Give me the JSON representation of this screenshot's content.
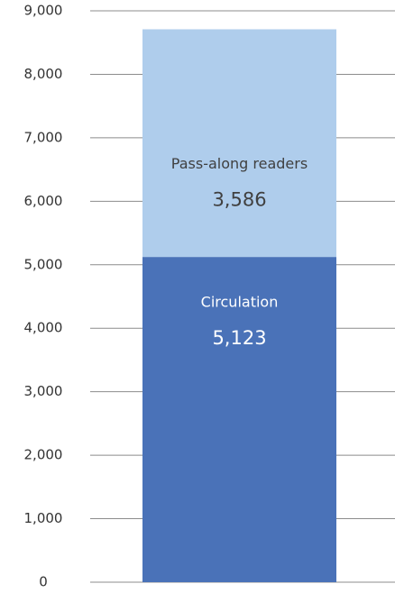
{
  "chart_data": {
    "type": "bar",
    "stacked": true,
    "categories": [
      null
    ],
    "series": [
      {
        "name": "Circulation",
        "color": "#4a72b8",
        "label_color": "#ffffff",
        "values": [
          5123
        ],
        "value_labels": [
          "5,123"
        ]
      },
      {
        "name": "Pass-along readers",
        "color": "#afcdec",
        "label_color": "#404040",
        "values": [
          3586
        ],
        "value_labels": [
          "3,586"
        ]
      }
    ],
    "ylim": [
      0,
      9000
    ],
    "yticks": [
      0,
      {
        "value": 1000,
        "label": "1,000"
      },
      {
        "value": 2000,
        "label": "2,000"
      },
      {
        "value": 3000,
        "label": "3,000"
      },
      {
        "value": 4000,
        "label": "4,000"
      },
      {
        "value": 5000,
        "label": "5,000"
      },
      {
        "value": 6000,
        "label": "6,000"
      },
      {
        "value": 7000,
        "label": "7,000"
      },
      {
        "value": 8000,
        "label": "8,000"
      },
      {
        "value": 9000,
        "label": "9,000"
      }
    ],
    "grid": true
  }
}
